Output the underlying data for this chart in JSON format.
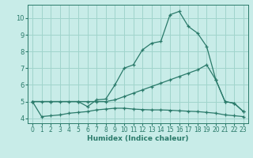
{
  "xlabel": "Humidex (Indice chaleur)",
  "background_color": "#c8ece8",
  "grid_color": "#a0d4cc",
  "line_color": "#2a7a6a",
  "xlim": [
    -0.5,
    23.5
  ],
  "ylim": [
    3.7,
    10.8
  ],
  "xticks": [
    0,
    1,
    2,
    3,
    4,
    5,
    6,
    7,
    8,
    9,
    10,
    11,
    12,
    13,
    14,
    15,
    16,
    17,
    18,
    19,
    20,
    21,
    22,
    23
  ],
  "yticks": [
    4,
    5,
    6,
    7,
    8,
    9,
    10
  ],
  "line1_x": [
    0,
    1,
    2,
    3,
    4,
    5,
    6,
    7,
    8,
    9,
    10,
    11,
    12,
    13,
    14,
    15,
    16,
    17,
    18,
    19,
    20,
    21,
    22,
    23
  ],
  "line1_y": [
    5.0,
    5.0,
    5.0,
    5.0,
    5.0,
    5.0,
    4.7,
    5.1,
    5.15,
    6.0,
    7.0,
    7.2,
    8.1,
    8.5,
    8.6,
    10.2,
    10.4,
    9.5,
    9.1,
    8.3,
    6.3,
    5.0,
    4.9,
    4.4
  ],
  "line2_x": [
    0,
    2,
    5,
    6,
    7,
    8,
    9,
    10,
    11,
    12,
    13,
    14,
    15,
    16,
    17,
    18,
    19,
    20,
    21,
    22,
    23
  ],
  "line2_y": [
    5.0,
    5.0,
    5.0,
    5.0,
    5.0,
    5.0,
    5.1,
    5.3,
    5.5,
    5.7,
    5.9,
    6.1,
    6.3,
    6.5,
    6.7,
    6.9,
    7.2,
    6.3,
    5.0,
    4.9,
    4.4
  ],
  "line3_x": [
    0,
    1,
    2,
    3,
    4,
    5,
    6,
    7,
    8,
    9,
    10,
    11,
    12,
    13,
    14,
    15,
    16,
    17,
    18,
    19,
    20,
    21,
    22,
    23
  ],
  "line3_y": [
    5.0,
    4.1,
    4.15,
    4.2,
    4.3,
    4.35,
    4.4,
    4.5,
    4.55,
    4.6,
    4.6,
    4.55,
    4.52,
    4.5,
    4.5,
    4.48,
    4.45,
    4.42,
    4.4,
    4.35,
    4.3,
    4.2,
    4.15,
    4.1
  ]
}
